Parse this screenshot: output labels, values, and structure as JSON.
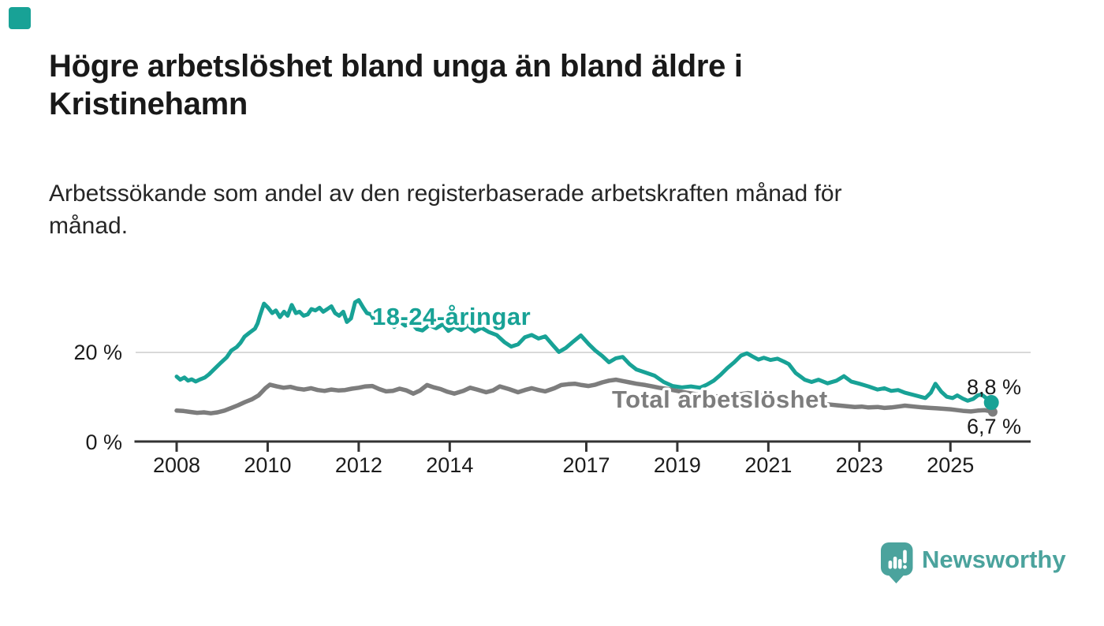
{
  "header": {
    "title_lines": [
      "Högre arbetslöshet bland unga än bland äldre i",
      "Kristinehamn"
    ],
    "subtitle_lines": [
      "Arbetssökande som andel av den registerbaserade arbetskraften månad för",
      "månad."
    ]
  },
  "footer": {
    "brand": "Newsworthy"
  },
  "colors": {
    "accent_teal": "#18a296",
    "series_youth": "#18a296",
    "series_total": "#7d7d7d",
    "logo_teal": "#4ba39d",
    "gridline": "#d9d9d9",
    "axis": "#333333",
    "text_dark": "#1a1a1a"
  },
  "icons": {
    "corner_mark": "teal-square",
    "logo_mark": "speech-bubble-with-bar-chart-and-exclamation"
  },
  "chart_data": {
    "type": "line",
    "title": "Högre arbetslöshet bland unga än bland äldre i Kristinehamn",
    "subtitle": "Arbetssökande som andel av den registerbaserade arbetskraften månad för månad.",
    "unit": "%",
    "grid": "single horizontal gridline at 20 %",
    "legend_position": "inline labels on lines",
    "x_axis": {
      "label": "",
      "range": [
        2007.1,
        2026.8
      ],
      "ticks": [
        2008,
        2010,
        2012,
        2014,
        2017,
        2019,
        2021,
        2023,
        2025
      ],
      "tick_labels": [
        "2008",
        "2010",
        "2012",
        "2014",
        "2017",
        "2019",
        "2021",
        "2023",
        "2025"
      ]
    },
    "y_axis": {
      "label": "",
      "range": [
        0,
        35
      ],
      "ticks": [
        0,
        20
      ],
      "tick_labels": [
        "0 %",
        "20 %"
      ],
      "gridline_at": 20
    },
    "series": [
      {
        "name": "18-24-åringar",
        "color": "#18a296",
        "end_value": 8.8,
        "end_label": "8,8 %",
        "points": [
          [
            2008.0,
            14.6
          ],
          [
            2008.08,
            13.9
          ],
          [
            2008.17,
            14.4
          ],
          [
            2008.25,
            13.7
          ],
          [
            2008.33,
            14.0
          ],
          [
            2008.42,
            13.5
          ],
          [
            2008.5,
            13.9
          ],
          [
            2008.62,
            14.4
          ],
          [
            2008.71,
            15.1
          ],
          [
            2008.8,
            16.0
          ],
          [
            2008.88,
            16.8
          ],
          [
            2008.97,
            17.7
          ],
          [
            2009.1,
            18.9
          ],
          [
            2009.2,
            20.4
          ],
          [
            2009.32,
            21.2
          ],
          [
            2009.4,
            22.1
          ],
          [
            2009.49,
            23.5
          ],
          [
            2009.6,
            24.4
          ],
          [
            2009.72,
            25.3
          ],
          [
            2009.78,
            26.5
          ],
          [
            2009.83,
            28.2
          ],
          [
            2009.92,
            30.9
          ],
          [
            2010.01,
            30.0
          ],
          [
            2010.1,
            28.8
          ],
          [
            2010.18,
            29.4
          ],
          [
            2010.27,
            27.9
          ],
          [
            2010.36,
            29.1
          ],
          [
            2010.44,
            28.2
          ],
          [
            2010.53,
            30.6
          ],
          [
            2010.62,
            28.8
          ],
          [
            2010.7,
            29.1
          ],
          [
            2010.79,
            28.2
          ],
          [
            2010.88,
            28.5
          ],
          [
            2010.96,
            29.7
          ],
          [
            2011.05,
            29.4
          ],
          [
            2011.14,
            30.0
          ],
          [
            2011.22,
            29.1
          ],
          [
            2011.31,
            29.7
          ],
          [
            2011.4,
            30.3
          ],
          [
            2011.48,
            28.8
          ],
          [
            2011.57,
            28.2
          ],
          [
            2011.66,
            29.1
          ],
          [
            2011.74,
            26.8
          ],
          [
            2011.83,
            27.6
          ],
          [
            2011.92,
            31.2
          ],
          [
            2012.0,
            31.7
          ],
          [
            2012.1,
            30.0
          ],
          [
            2012.18,
            28.8
          ],
          [
            2012.27,
            28.5
          ],
          [
            2012.36,
            26.8
          ],
          [
            2012.44,
            27.4
          ],
          [
            2012.53,
            26.2
          ],
          [
            2012.65,
            26.8
          ],
          [
            2012.78,
            25.7
          ],
          [
            2012.9,
            26.9
          ],
          [
            2013.02,
            26.0
          ],
          [
            2013.15,
            26.6
          ],
          [
            2013.28,
            25.2
          ],
          [
            2013.4,
            24.9
          ],
          [
            2013.55,
            26.1
          ],
          [
            2013.7,
            25.4
          ],
          [
            2013.85,
            26.3
          ],
          [
            2013.97,
            24.8
          ],
          [
            2014.1,
            25.8
          ],
          [
            2014.25,
            25.0
          ],
          [
            2014.4,
            26.0
          ],
          [
            2014.55,
            24.7
          ],
          [
            2014.7,
            25.5
          ],
          [
            2014.85,
            24.6
          ],
          [
            2015.03,
            23.9
          ],
          [
            2015.2,
            22.3
          ],
          [
            2015.35,
            21.3
          ],
          [
            2015.5,
            21.8
          ],
          [
            2015.65,
            23.4
          ],
          [
            2015.8,
            23.9
          ],
          [
            2015.95,
            23.1
          ],
          [
            2016.1,
            23.6
          ],
          [
            2016.25,
            21.8
          ],
          [
            2016.4,
            20.1
          ],
          [
            2016.55,
            21.0
          ],
          [
            2016.7,
            22.3
          ],
          [
            2016.88,
            23.8
          ],
          [
            2017.06,
            21.8
          ],
          [
            2017.2,
            20.4
          ],
          [
            2017.35,
            19.2
          ],
          [
            2017.5,
            17.8
          ],
          [
            2017.65,
            18.7
          ],
          [
            2017.8,
            19.0
          ],
          [
            2017.95,
            17.4
          ],
          [
            2018.1,
            16.2
          ],
          [
            2018.3,
            15.5
          ],
          [
            2018.5,
            14.8
          ],
          [
            2018.7,
            13.4
          ],
          [
            2018.9,
            12.5
          ],
          [
            2019.1,
            12.2
          ],
          [
            2019.3,
            12.4
          ],
          [
            2019.5,
            12.1
          ],
          [
            2019.65,
            12.8
          ],
          [
            2019.8,
            13.7
          ],
          [
            2019.95,
            15.0
          ],
          [
            2020.1,
            16.5
          ],
          [
            2020.25,
            17.8
          ],
          [
            2020.4,
            19.3
          ],
          [
            2020.53,
            19.8
          ],
          [
            2020.65,
            19.1
          ],
          [
            2020.78,
            18.4
          ],
          [
            2020.9,
            18.8
          ],
          [
            2021.05,
            18.3
          ],
          [
            2021.2,
            18.6
          ],
          [
            2021.35,
            17.9
          ],
          [
            2021.45,
            17.4
          ],
          [
            2021.6,
            15.4
          ],
          [
            2021.8,
            13.9
          ],
          [
            2021.95,
            13.4
          ],
          [
            2022.1,
            13.9
          ],
          [
            2022.3,
            13.1
          ],
          [
            2022.5,
            13.7
          ],
          [
            2022.66,
            14.7
          ],
          [
            2022.82,
            13.5
          ],
          [
            2023.0,
            13.0
          ],
          [
            2023.2,
            12.4
          ],
          [
            2023.4,
            11.7
          ],
          [
            2023.55,
            12.0
          ],
          [
            2023.7,
            11.4
          ],
          [
            2023.85,
            11.6
          ],
          [
            2024.0,
            11.0
          ],
          [
            2024.15,
            10.6
          ],
          [
            2024.3,
            10.2
          ],
          [
            2024.45,
            9.8
          ],
          [
            2024.57,
            11.0
          ],
          [
            2024.67,
            13.0
          ],
          [
            2024.8,
            11.2
          ],
          [
            2024.92,
            10.1
          ],
          [
            2025.05,
            9.8
          ],
          [
            2025.15,
            10.4
          ],
          [
            2025.27,
            9.7
          ],
          [
            2025.38,
            9.2
          ],
          [
            2025.5,
            9.6
          ],
          [
            2025.6,
            10.4
          ],
          [
            2025.68,
            10.6
          ],
          [
            2025.8,
            9.7
          ],
          [
            2025.9,
            8.8
          ]
        ]
      },
      {
        "name": "Total arbetslöshet",
        "color": "#7d7d7d",
        "end_value": 6.7,
        "end_label": "6,7 %",
        "points": [
          [
            2008.0,
            7.0
          ],
          [
            2008.15,
            6.9
          ],
          [
            2008.3,
            6.7
          ],
          [
            2008.45,
            6.5
          ],
          [
            2008.6,
            6.6
          ],
          [
            2008.75,
            6.4
          ],
          [
            2008.9,
            6.6
          ],
          [
            2009.05,
            7.0
          ],
          [
            2009.2,
            7.6
          ],
          [
            2009.35,
            8.2
          ],
          [
            2009.5,
            8.9
          ],
          [
            2009.65,
            9.5
          ],
          [
            2009.8,
            10.4
          ],
          [
            2009.95,
            12.0
          ],
          [
            2010.05,
            12.8
          ],
          [
            2010.2,
            12.4
          ],
          [
            2010.35,
            12.1
          ],
          [
            2010.5,
            12.3
          ],
          [
            2010.65,
            11.9
          ],
          [
            2010.8,
            11.7
          ],
          [
            2010.95,
            12.0
          ],
          [
            2011.1,
            11.6
          ],
          [
            2011.25,
            11.4
          ],
          [
            2011.4,
            11.7
          ],
          [
            2011.55,
            11.5
          ],
          [
            2011.7,
            11.6
          ],
          [
            2011.85,
            11.9
          ],
          [
            2012.0,
            12.1
          ],
          [
            2012.15,
            12.4
          ],
          [
            2012.3,
            12.5
          ],
          [
            2012.45,
            11.8
          ],
          [
            2012.6,
            11.3
          ],
          [
            2012.75,
            11.4
          ],
          [
            2012.9,
            11.9
          ],
          [
            2013.05,
            11.5
          ],
          [
            2013.2,
            10.8
          ],
          [
            2013.35,
            11.5
          ],
          [
            2013.5,
            12.7
          ],
          [
            2013.65,
            12.2
          ],
          [
            2013.8,
            11.8
          ],
          [
            2013.95,
            11.2
          ],
          [
            2014.1,
            10.8
          ],
          [
            2014.3,
            11.4
          ],
          [
            2014.45,
            12.1
          ],
          [
            2014.6,
            11.7
          ],
          [
            2014.8,
            11.1
          ],
          [
            2014.95,
            11.5
          ],
          [
            2015.1,
            12.4
          ],
          [
            2015.3,
            11.8
          ],
          [
            2015.5,
            11.1
          ],
          [
            2015.65,
            11.6
          ],
          [
            2015.8,
            12.0
          ],
          [
            2015.95,
            11.6
          ],
          [
            2016.1,
            11.3
          ],
          [
            2016.3,
            12.0
          ],
          [
            2016.45,
            12.7
          ],
          [
            2016.6,
            12.9
          ],
          [
            2016.75,
            13.0
          ],
          [
            2016.9,
            12.7
          ],
          [
            2017.05,
            12.5
          ],
          [
            2017.2,
            12.8
          ],
          [
            2017.35,
            13.3
          ],
          [
            2017.5,
            13.7
          ],
          [
            2017.65,
            13.9
          ],
          [
            2017.8,
            13.6
          ],
          [
            2017.95,
            13.3
          ],
          [
            2018.1,
            13.0
          ],
          [
            2018.3,
            12.7
          ],
          [
            2018.45,
            12.4
          ],
          [
            2018.6,
            12.1
          ],
          [
            2018.8,
            11.8
          ],
          [
            2019.0,
            11.4
          ],
          [
            2019.2,
            11.0
          ],
          [
            2019.4,
            10.7
          ],
          [
            2019.6,
            10.4
          ],
          [
            2019.8,
            10.2
          ],
          [
            2020.0,
            10.1
          ],
          [
            2020.2,
            10.4
          ],
          [
            2020.4,
            10.7
          ],
          [
            2020.55,
            10.9
          ],
          [
            2020.7,
            10.7
          ],
          [
            2020.9,
            10.4
          ],
          [
            2021.1,
            10.0
          ],
          [
            2021.3,
            9.7
          ],
          [
            2021.5,
            9.4
          ],
          [
            2021.7,
            9.1
          ],
          [
            2021.9,
            8.9
          ],
          [
            2022.1,
            8.7
          ],
          [
            2022.3,
            8.4
          ],
          [
            2022.5,
            8.2
          ],
          [
            2022.7,
            8.0
          ],
          [
            2022.9,
            7.8
          ],
          [
            2023.05,
            7.9
          ],
          [
            2023.2,
            7.7
          ],
          [
            2023.4,
            7.8
          ],
          [
            2023.55,
            7.6
          ],
          [
            2023.7,
            7.7
          ],
          [
            2023.85,
            7.9
          ],
          [
            2024.0,
            8.1
          ],
          [
            2024.2,
            7.9
          ],
          [
            2024.4,
            7.7
          ],
          [
            2024.55,
            7.6
          ],
          [
            2024.7,
            7.5
          ],
          [
            2024.85,
            7.4
          ],
          [
            2025.0,
            7.3
          ],
          [
            2025.15,
            7.1
          ],
          [
            2025.3,
            6.9
          ],
          [
            2025.45,
            6.8
          ],
          [
            2025.6,
            7.0
          ],
          [
            2025.75,
            7.1
          ],
          [
            2025.85,
            6.9
          ],
          [
            2025.93,
            6.7
          ]
        ]
      }
    ]
  }
}
